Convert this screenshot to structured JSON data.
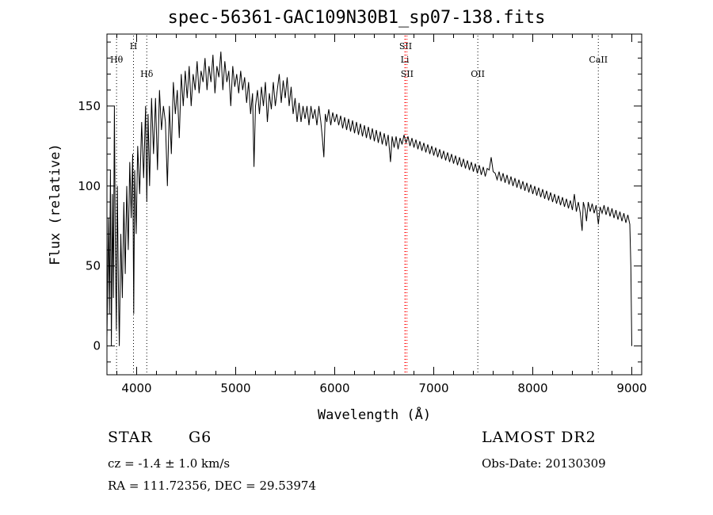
{
  "title": "spec-56361-GAC109N30B1_sp07-138.fits",
  "info": {
    "object_type": "STAR",
    "subclass": "G6",
    "survey": "LAMOST DR2",
    "cz": "cz = -1.4 ± 1.0 km/s",
    "obs_date": "Obs-Date: 20130309",
    "radec": "RA = 111.72356, DEC =  29.53974"
  },
  "chart_data": {
    "type": "line",
    "xlabel": "Wavelength (Å)",
    "ylabel": "Flux (relative)",
    "xlim": [
      3700,
      9100
    ],
    "ylim": [
      -18,
      195
    ],
    "grid": false,
    "x_ticks": [
      4000,
      5000,
      6000,
      7000,
      8000,
      9000
    ],
    "y_ticks": [
      0,
      50,
      100,
      150
    ],
    "line_color": "#000000",
    "marker_color_balmer": "#000000",
    "marker_color_red": "#ff0000",
    "lines": [
      {
        "label": "Hθ",
        "x": 3797,
        "color": "#000000",
        "row": 2
      },
      {
        "label": "H",
        "x": 3968,
        "color": "#000000",
        "row": 1
      },
      {
        "label": "Hδ",
        "x": 4102,
        "color": "#000000",
        "row": 3
      },
      {
        "label": "SII",
        "x": 6716,
        "color": "#ff0000",
        "row": 1
      },
      {
        "label": "Li",
        "x": 6708,
        "color": "#ff0000",
        "row": 2
      },
      {
        "label": "SII",
        "x": 6731,
        "color": "#ff0000",
        "row": 3
      },
      {
        "label": "OII",
        "x": 7445,
        "color": "#000000",
        "row": 3
      },
      {
        "label": "CaII",
        "x": 8662,
        "color": "#000000",
        "row": 2
      }
    ],
    "series": [
      {
        "values": [
          [
            3700,
            5
          ],
          [
            3715,
            80
          ],
          [
            3725,
            20
          ],
          [
            3735,
            110
          ],
          [
            3745,
            0
          ],
          [
            3755,
            95
          ],
          [
            3765,
            30
          ],
          [
            3775,
            150
          ],
          [
            3785,
            60
          ],
          [
            3795,
            10
          ],
          [
            3805,
            100
          ],
          [
            3815,
            40
          ],
          [
            3825,
            0
          ],
          [
            3840,
            70
          ],
          [
            3855,
            30
          ],
          [
            3870,
            90
          ],
          [
            3885,
            45
          ],
          [
            3900,
            100
          ],
          [
            3915,
            60
          ],
          [
            3930,
            115
          ],
          [
            3945,
            80
          ],
          [
            3960,
            120
          ],
          [
            3970,
            20
          ],
          [
            3980,
            110
          ],
          [
            3995,
            70
          ],
          [
            4010,
            125
          ],
          [
            4030,
            95
          ],
          [
            4050,
            140
          ],
          [
            4070,
            105
          ],
          [
            4090,
            150
          ],
          [
            4102,
            90
          ],
          [
            4115,
            145
          ],
          [
            4130,
            100
          ],
          [
            4150,
            155
          ],
          [
            4170,
            120
          ],
          [
            4190,
            155
          ],
          [
            4210,
            110
          ],
          [
            4230,
            160
          ],
          [
            4250,
            135
          ],
          [
            4270,
            150
          ],
          [
            4290,
            140
          ],
          [
            4310,
            100
          ],
          [
            4330,
            150
          ],
          [
            4350,
            120
          ],
          [
            4370,
            165
          ],
          [
            4390,
            145
          ],
          [
            4410,
            160
          ],
          [
            4430,
            130
          ],
          [
            4450,
            170
          ],
          [
            4470,
            150
          ],
          [
            4490,
            172
          ],
          [
            4510,
            155
          ],
          [
            4530,
            175
          ],
          [
            4550,
            150
          ],
          [
            4570,
            170
          ],
          [
            4590,
            160
          ],
          [
            4610,
            178
          ],
          [
            4630,
            158
          ],
          [
            4650,
            172
          ],
          [
            4670,
            165
          ],
          [
            4690,
            180
          ],
          [
            4710,
            160
          ],
          [
            4730,
            175
          ],
          [
            4750,
            165
          ],
          [
            4770,
            182
          ],
          [
            4790,
            158
          ],
          [
            4810,
            175
          ],
          [
            4830,
            168
          ],
          [
            4850,
            184
          ],
          [
            4870,
            160
          ],
          [
            4890,
            178
          ],
          [
            4910,
            165
          ],
          [
            4930,
            172
          ],
          [
            4950,
            150
          ],
          [
            4970,
            175
          ],
          [
            4990,
            162
          ],
          [
            5010,
            170
          ],
          [
            5030,
            158
          ],
          [
            5050,
            172
          ],
          [
            5070,
            160
          ],
          [
            5090,
            168
          ],
          [
            5110,
            152
          ],
          [
            5130,
            165
          ],
          [
            5150,
            145
          ],
          [
            5170,
            158
          ],
          [
            5185,
            112
          ],
          [
            5200,
            150
          ],
          [
            5220,
            160
          ],
          [
            5240,
            145
          ],
          [
            5260,
            162
          ],
          [
            5280,
            150
          ],
          [
            5300,
            165
          ],
          [
            5320,
            140
          ],
          [
            5340,
            158
          ],
          [
            5360,
            148
          ],
          [
            5380,
            165
          ],
          [
            5400,
            150
          ],
          [
            5420,
            160
          ],
          [
            5440,
            170
          ],
          [
            5460,
            152
          ],
          [
            5480,
            166
          ],
          [
            5500,
            155
          ],
          [
            5520,
            168
          ],
          [
            5540,
            150
          ],
          [
            5560,
            162
          ],
          [
            5580,
            145
          ],
          [
            5600,
            155
          ],
          [
            5620,
            140
          ],
          [
            5640,
            152
          ],
          [
            5660,
            140
          ],
          [
            5680,
            150
          ],
          [
            5700,
            142
          ],
          [
            5720,
            150
          ],
          [
            5740,
            138
          ],
          [
            5760,
            150
          ],
          [
            5780,
            142
          ],
          [
            5800,
            148
          ],
          [
            5820,
            138
          ],
          [
            5840,
            150
          ],
          [
            5860,
            140
          ],
          [
            5875,
            130
          ],
          [
            5890,
            118
          ],
          [
            5905,
            145
          ],
          [
            5920,
            140
          ],
          [
            5940,
            148
          ],
          [
            5960,
            138
          ],
          [
            5980,
            146
          ],
          [
            6000,
            140
          ],
          [
            6020,
            145
          ],
          [
            6040,
            138
          ],
          [
            6060,
            144
          ],
          [
            6080,
            136
          ],
          [
            6100,
            143
          ],
          [
            6120,
            135
          ],
          [
            6140,
            142
          ],
          [
            6160,
            134
          ],
          [
            6180,
            141
          ],
          [
            6200,
            133
          ],
          [
            6220,
            140
          ],
          [
            6240,
            132
          ],
          [
            6260,
            139
          ],
          [
            6280,
            131
          ],
          [
            6300,
            138
          ],
          [
            6320,
            130
          ],
          [
            6340,
            137
          ],
          [
            6360,
            129
          ],
          [
            6380,
            136
          ],
          [
            6400,
            128
          ],
          [
            6420,
            135
          ],
          [
            6440,
            127
          ],
          [
            6460,
            134
          ],
          [
            6480,
            126
          ],
          [
            6500,
            133
          ],
          [
            6520,
            125
          ],
          [
            6540,
            132
          ],
          [
            6563,
            115
          ],
          [
            6580,
            131
          ],
          [
            6600,
            124
          ],
          [
            6620,
            131
          ],
          [
            6640,
            123
          ],
          [
            6660,
            130
          ],
          [
            6680,
            126
          ],
          [
            6700,
            132
          ],
          [
            6720,
            127
          ],
          [
            6740,
            131
          ],
          [
            6760,
            125
          ],
          [
            6780,
            130
          ],
          [
            6800,
            124
          ],
          [
            6820,
            129
          ],
          [
            6840,
            123
          ],
          [
            6860,
            128
          ],
          [
            6880,
            122
          ],
          [
            6900,
            127
          ],
          [
            6920,
            121
          ],
          [
            6940,
            126
          ],
          [
            6960,
            120
          ],
          [
            6980,
            125
          ],
          [
            7000,
            119
          ],
          [
            7020,
            124
          ],
          [
            7040,
            118
          ],
          [
            7060,
            123
          ],
          [
            7080,
            117
          ],
          [
            7100,
            122
          ],
          [
            7120,
            116
          ],
          [
            7140,
            121
          ],
          [
            7160,
            115
          ],
          [
            7180,
            120
          ],
          [
            7200,
            114
          ],
          [
            7220,
            119
          ],
          [
            7240,
            113
          ],
          [
            7260,
            118
          ],
          [
            7280,
            112
          ],
          [
            7300,
            117
          ],
          [
            7320,
            111
          ],
          [
            7340,
            116
          ],
          [
            7360,
            110
          ],
          [
            7380,
            115
          ],
          [
            7400,
            109
          ],
          [
            7420,
            114
          ],
          [
            7440,
            108
          ],
          [
            7460,
            113
          ],
          [
            7480,
            107
          ],
          [
            7500,
            112
          ],
          [
            7520,
            106
          ],
          [
            7540,
            111
          ],
          [
            7560,
            110
          ],
          [
            7580,
            118
          ],
          [
            7600,
            109
          ],
          [
            7620,
            108
          ],
          [
            7640,
            104
          ],
          [
            7660,
            109
          ],
          [
            7680,
            103
          ],
          [
            7700,
            108
          ],
          [
            7720,
            102
          ],
          [
            7740,
            107
          ],
          [
            7760,
            101
          ],
          [
            7780,
            106
          ],
          [
            7800,
            100
          ],
          [
            7820,
            105
          ],
          [
            7840,
            99
          ],
          [
            7860,
            104
          ],
          [
            7880,
            98
          ],
          [
            7900,
            103
          ],
          [
            7920,
            97
          ],
          [
            7940,
            102
          ],
          [
            7960,
            96
          ],
          [
            7980,
            101
          ],
          [
            8000,
            95
          ],
          [
            8020,
            100
          ],
          [
            8040,
            94
          ],
          [
            8060,
            99
          ],
          [
            8080,
            93
          ],
          [
            8100,
            98
          ],
          [
            8120,
            92
          ],
          [
            8140,
            97
          ],
          [
            8160,
            91
          ],
          [
            8180,
            96
          ],
          [
            8200,
            90
          ],
          [
            8220,
            95
          ],
          [
            8240,
            89
          ],
          [
            8260,
            94
          ],
          [
            8280,
            88
          ],
          [
            8300,
            93
          ],
          [
            8320,
            87
          ],
          [
            8340,
            92
          ],
          [
            8360,
            86
          ],
          [
            8380,
            91
          ],
          [
            8400,
            85
          ],
          [
            8420,
            95
          ],
          [
            8440,
            84
          ],
          [
            8460,
            90
          ],
          [
            8480,
            83
          ],
          [
            8498,
            72
          ],
          [
            8510,
            90
          ],
          [
            8530,
            85
          ],
          [
            8542,
            78
          ],
          [
            8560,
            90
          ],
          [
            8580,
            84
          ],
          [
            8600,
            89
          ],
          [
            8620,
            83
          ],
          [
            8640,
            88
          ],
          [
            8662,
            76
          ],
          [
            8680,
            87
          ],
          [
            8700,
            83
          ],
          [
            8720,
            88
          ],
          [
            8740,
            82
          ],
          [
            8760,
            87
          ],
          [
            8780,
            81
          ],
          [
            8800,
            86
          ],
          [
            8820,
            80
          ],
          [
            8840,
            85
          ],
          [
            8860,
            79
          ],
          [
            8880,
            84
          ],
          [
            8900,
            78
          ],
          [
            8920,
            83
          ],
          [
            8940,
            77
          ],
          [
            8960,
            82
          ],
          [
            8980,
            76
          ],
          [
            8990,
            50
          ],
          [
            9000,
            0
          ]
        ]
      }
    ]
  }
}
